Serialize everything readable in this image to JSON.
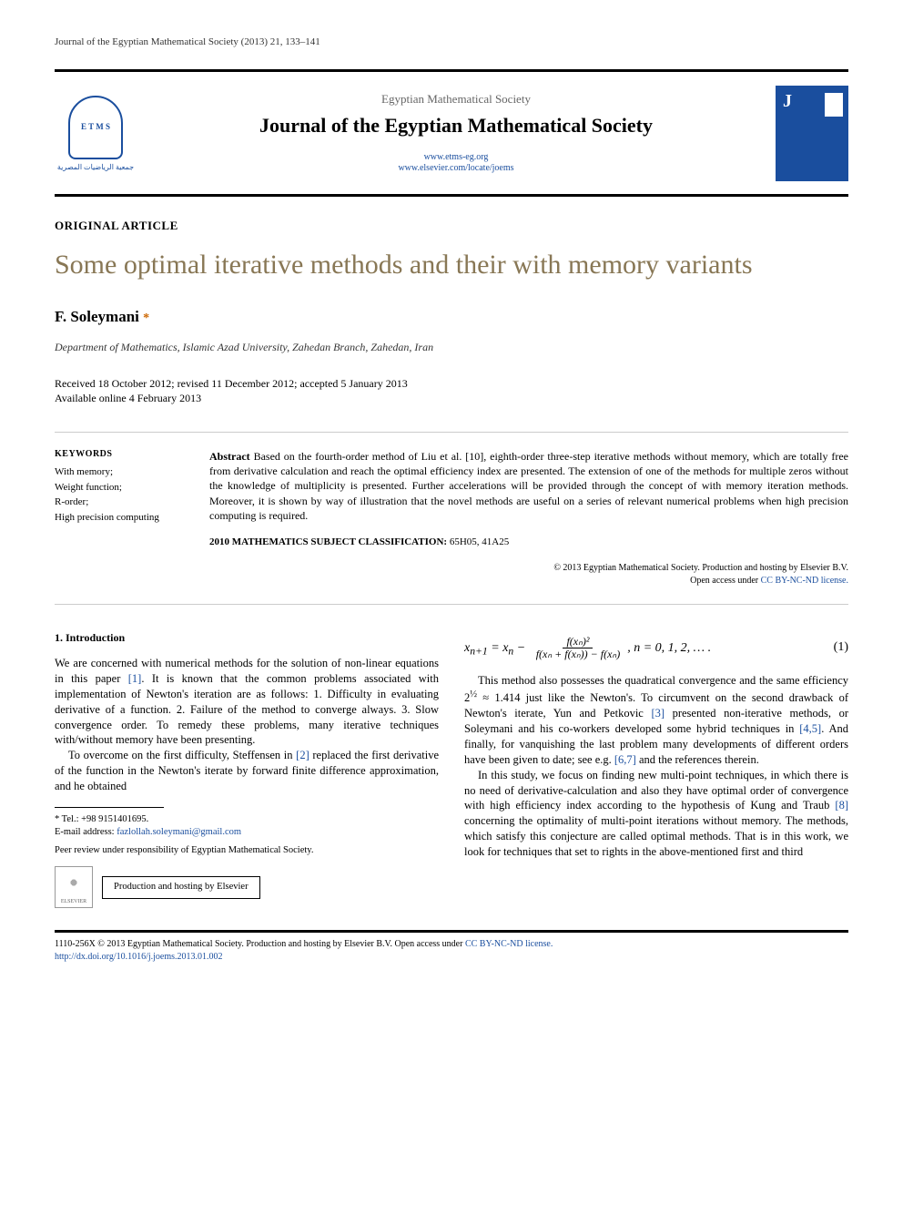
{
  "running_head": "Journal of the Egyptian Mathematical Society (2013) 21, 133–141",
  "header": {
    "society": "Egyptian Mathematical Society",
    "journal": "Journal of the Egyptian Mathematical Society",
    "link1": "www.etms-eg.org",
    "link2": "www.elsevier.com/locate/joems",
    "logo_letters": "E T\nM S",
    "logo_arabic": "جمعية الرياضيات المصرية"
  },
  "article_type": "ORIGINAL ARTICLE",
  "title": "Some optimal iterative methods and their with memory variants",
  "author": "F. Soleymani",
  "affiliation": "Department of Mathematics, Islamic Azad University, Zahedan Branch, Zahedan, Iran",
  "dates": {
    "line1": "Received 18 October 2012; revised 11 December 2012; accepted 5 January 2013",
    "line2": "Available online 4 February 2013"
  },
  "keywords": {
    "head": "KEYWORDS",
    "items": [
      "With memory;",
      "Weight function;",
      "R-order;",
      "High precision computing"
    ]
  },
  "abstract": {
    "label": "Abstract",
    "text": "Based on the fourth-order method of Liu et al. [10], eighth-order three-step iterative methods without memory, which are totally free from derivative calculation and reach the optimal efficiency index are presented. The extension of one of the methods for multiple zeros without the knowledge of multiplicity is presented. Further accelerations will be provided through the concept of with memory iteration methods. Moreover, it is shown by way of illustration that the novel methods are useful on a series of relevant numerical problems when high precision computing is required."
  },
  "msc": {
    "label": "2010 MATHEMATICS SUBJECT CLASSIFICATION:",
    "codes": "65H05, 41A25"
  },
  "copyright": {
    "line1": "© 2013 Egyptian Mathematical Society. Production and hosting by Elsevier B.V.",
    "line2_prefix": "Open access under ",
    "cc_text": "CC BY-NC-ND license."
  },
  "section1": {
    "head": "1. Introduction",
    "p1_a": "We are concerned with numerical methods for the solution of non-linear equations in this paper ",
    "p1_ref1": "[1]",
    "p1_b": ". It is known that the common problems associated with implementation of Newton's iteration are as follows: 1. Difficulty in evaluating derivative of a function. 2. Failure of the method to converge always. 3. Slow convergence order. To remedy these problems, many iterative techniques with/without memory have been presenting.",
    "p2_a": "To overcome on the first difficulty, Steffensen in ",
    "p2_ref": "[2]",
    "p2_b": " replaced the first derivative of the function in the Newton's iterate by forward finite difference approximation, and he obtained"
  },
  "equation1": {
    "lhs": "x",
    "sub_n1": "n+1",
    "eq": " = x",
    "sub_n": "n",
    "minus": " − ",
    "num": "f(xₙ)²",
    "den": "f(xₙ + f(xₙ)) − f(xₙ)",
    "tail": ",   n = 0, 1, 2, … .",
    "num_label": "(1)"
  },
  "col2": {
    "p1_a": "This method also possesses the quadratical convergence and the same efficiency 2",
    "p1_exp": "½",
    "p1_b": " ≈ 1.414 just like the Newton's. To circumvent on the second drawback of Newton's iterate, Yun and Petkovic ",
    "p1_ref3": "[3]",
    "p1_c": " presented non-iterative methods, or Soleymani and his co-workers developed some hybrid techniques in ",
    "p1_ref45": "[4,5]",
    "p1_d": ". And finally, for vanquishing the last problem many developments of different orders have been given to date; see e.g. ",
    "p1_ref67": "[6,7]",
    "p1_e": " and the references therein.",
    "p2_a": "In this study, we focus on finding new multi-point techniques, in which there is no need of derivative-calculation and also they have optimal order of convergence with high efficiency index according to the hypothesis of Kung and Traub ",
    "p2_ref8": "[8]",
    "p2_b": " concerning the optimality of multi-point iterations without memory. The methods, which satisfy this conjecture are called optimal methods. That is in this work, we look for techniques that set to rights in the above-mentioned first and third"
  },
  "footnotes": {
    "tel_label": "* Tel.: ",
    "tel": "+98 9151401695.",
    "email_label": "E-mail address: ",
    "email": "fazlollah.soleymani@gmail.com",
    "peer": "Peer review under responsibility of Egyptian Mathematical Society.",
    "elsevier": "ELSEVIER",
    "hosting": "Production and hosting by Elsevier"
  },
  "footer": {
    "line1_a": "1110-256X © 2013 Egyptian Mathematical Society. Production and hosting by Elsevier B.V. ",
    "line1_b": "Open access under ",
    "cc_text": "CC BY-NC-ND license.",
    "doi": "http://dx.doi.org/10.1016/j.joems.2013.01.002"
  },
  "colors": {
    "title": "#887755",
    "link": "#1a4e9e",
    "rule": "#000000"
  }
}
